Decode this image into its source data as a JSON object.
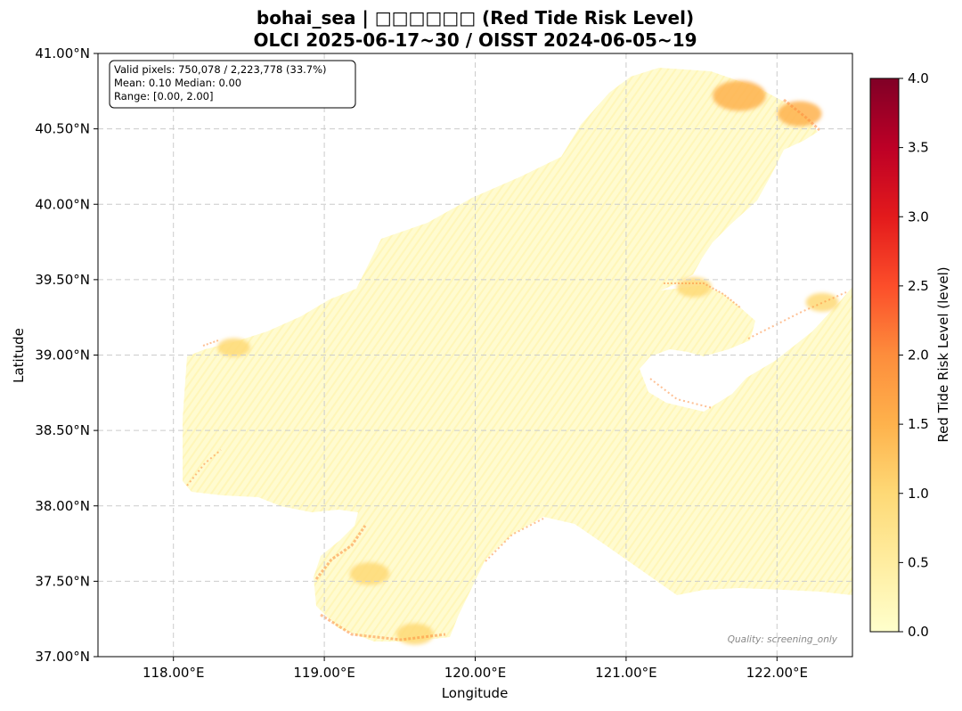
{
  "chart_data": {
    "type": "heatmap",
    "title": "bohai_sea | □□□□□□ (Red Tide Risk Level)",
    "subtitle": "OLCI 2025-06-17~30 / OISST 2024-06-05~19",
    "xlabel": "Longitude",
    "ylabel": "Latitude",
    "xlim": [
      117.5,
      122.5
    ],
    "ylim": [
      37.0,
      41.0
    ],
    "x_ticks": [
      118.0,
      119.0,
      120.0,
      121.0,
      122.0
    ],
    "x_tick_labels": [
      "118.00°E",
      "119.00°E",
      "120.00°E",
      "121.00°E",
      "122.00°E"
    ],
    "y_ticks": [
      37.0,
      37.5,
      38.0,
      38.5,
      39.0,
      39.5,
      40.0,
      40.5,
      41.0
    ],
    "y_tick_labels": [
      "37.00°N",
      "37.50°N",
      "38.00°N",
      "38.50°N",
      "39.00°N",
      "39.50°N",
      "40.00°N",
      "40.50°N",
      "41.00°N"
    ],
    "grid": true,
    "colorbar": {
      "label": "Red Tide Risk Level (level)",
      "range": [
        0.0,
        4.0
      ],
      "ticks": [
        0.0,
        0.5,
        1.0,
        1.5,
        2.0,
        2.5,
        3.0,
        3.5,
        4.0
      ],
      "tick_labels": [
        "0.0",
        "0.5",
        "1.0",
        "1.5",
        "2.0",
        "2.5",
        "3.0",
        "3.5",
        "4.0"
      ],
      "colormap": [
        "#ffffcc",
        "#ffeda0",
        "#fed976",
        "#feb24c",
        "#fd8d3c",
        "#fc4e2a",
        "#e31a1c",
        "#bd0026",
        "#800026"
      ]
    },
    "stats_box": {
      "line1": "Valid pixels: 750,078 / 2,223,778 (33.7%)",
      "line2": "Mean: 0.10  Median: 0.00",
      "line3": "Range: [0.00, 2.00]"
    },
    "annotation": "Quality: screening_only",
    "hotspots": [
      {
        "lon": 121.75,
        "lat": 40.72,
        "value": 1.7
      },
      {
        "lon": 122.15,
        "lat": 40.6,
        "value": 1.3
      },
      {
        "lon": 119.3,
        "lat": 37.55,
        "value": 1.1
      },
      {
        "lon": 119.6,
        "lat": 37.15,
        "value": 1.0
      },
      {
        "lon": 121.45,
        "lat": 39.45,
        "value": 0.9
      },
      {
        "lon": 122.3,
        "lat": 39.35,
        "value": 0.8
      },
      {
        "lon": 118.4,
        "lat": 39.05,
        "value": 0.8
      }
    ]
  }
}
